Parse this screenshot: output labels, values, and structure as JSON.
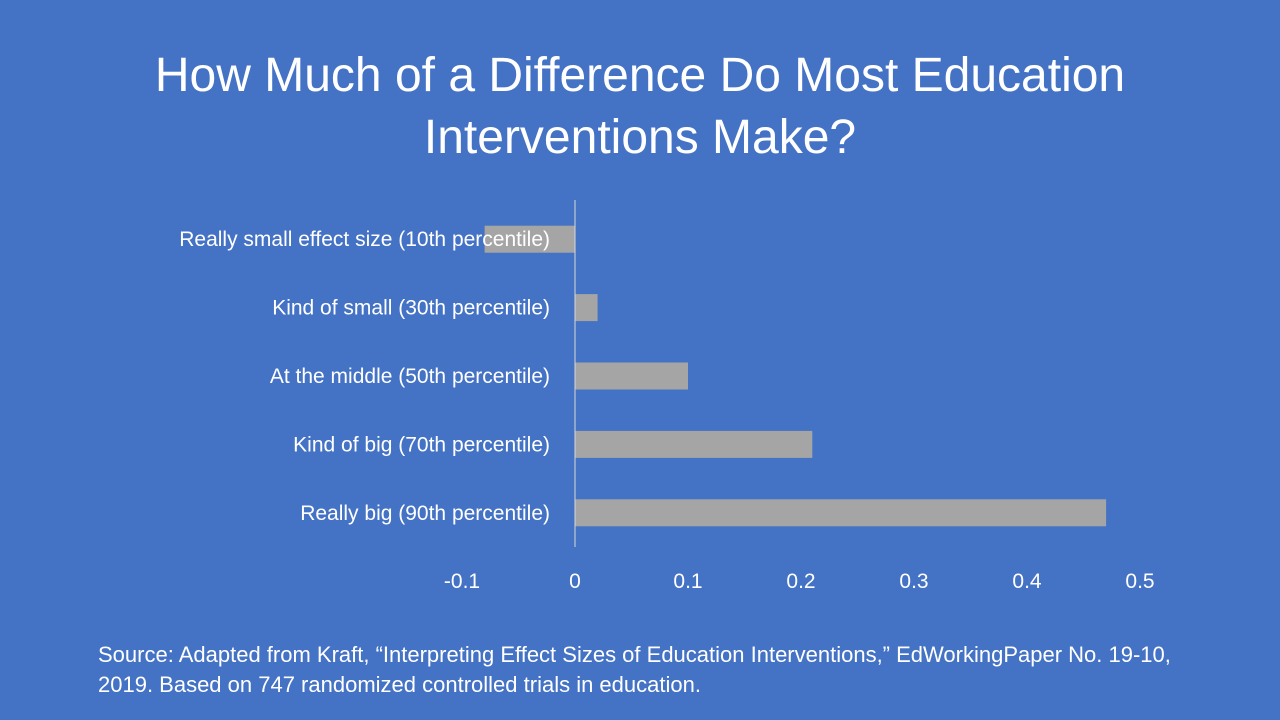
{
  "slide": {
    "title": "How Much of a Difference Do Most Education Interventions Make?",
    "source": "Source: Adapted from Kraft, “Interpreting Effect Sizes of Education Interventions,” EdWorkingPaper No. 19-10, 2019. Based on 747 randomized controlled trials in education."
  },
  "colors": {
    "background": "#4472C4",
    "bar": "#A5A5A5",
    "axis": "#D9D9D9",
    "text": "#FFFFFF"
  },
  "chart_data": {
    "type": "bar",
    "orientation": "horizontal",
    "title": "",
    "xlabel": "",
    "ylabel": "",
    "categories": [
      "Really small effect size (10th percentile)",
      "Kind of small (30th percentile)",
      "At the middle (50th percentile)",
      "Kind of big (70th percentile)",
      "Really big (90th percentile)"
    ],
    "values": [
      -0.08,
      0.02,
      0.1,
      0.21,
      0.47
    ],
    "xlim": [
      -0.1,
      0.5
    ],
    "xticks": [
      -0.1,
      0,
      0.1,
      0.2,
      0.3,
      0.4,
      0.5
    ],
    "xtick_labels": [
      "-0.1",
      "0",
      "0.1",
      "0.2",
      "0.3",
      "0.4",
      "0.5"
    ],
    "grid": false,
    "legend": "none"
  }
}
